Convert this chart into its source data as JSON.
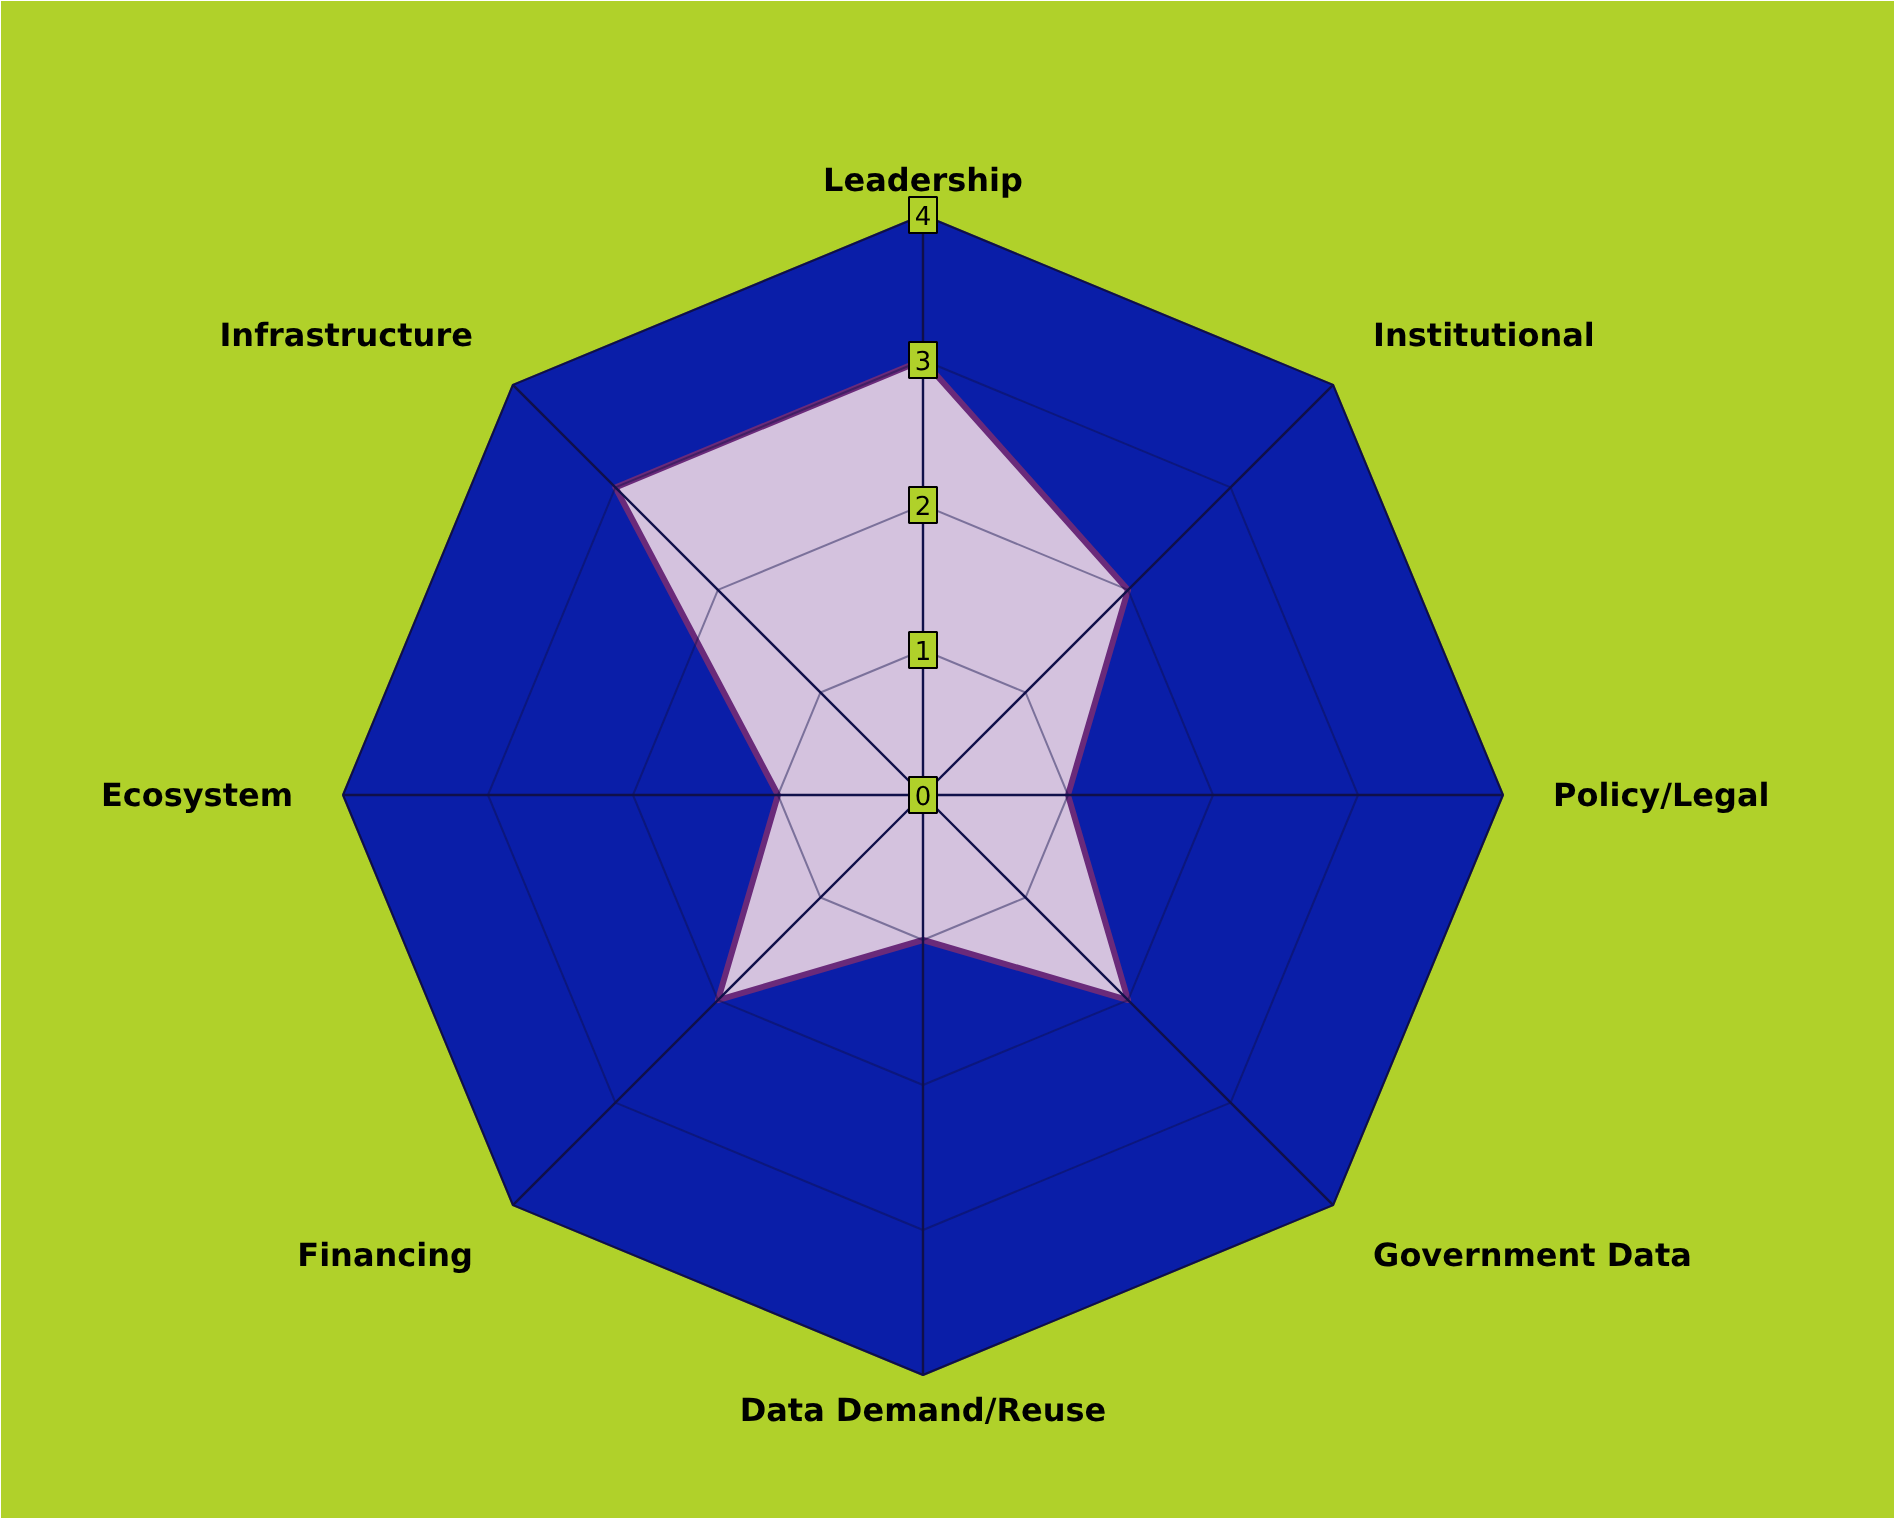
{
  "chart_data": {
    "type": "radar",
    "categories": [
      "Leadership",
      "Institutional",
      "Policy/Legal",
      "Government Data",
      "Data Demand/Reuse",
      "Financing",
      "Ecosystem",
      "Infrastructure"
    ],
    "series": [
      {
        "color": "#6a2a7a",
        "values": [
          3,
          2,
          1,
          2,
          1,
          2,
          1,
          3
        ]
      }
    ],
    "ylim": [
      0,
      4
    ],
    "yticks": [
      0,
      1,
      2,
      3,
      4
    ],
    "grid": true,
    "marker": "none"
  }
}
